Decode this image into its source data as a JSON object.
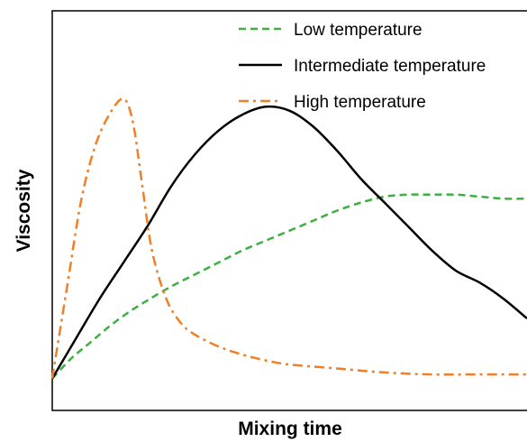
{
  "chart_data": {
    "type": "line",
    "title": "",
    "xlabel": "Mixing time",
    "ylabel": "Viscosity",
    "xlim": [
      0,
      100
    ],
    "ylim": [
      0,
      100
    ],
    "grid": false,
    "legend_position": "top-right",
    "series": [
      {
        "name": "Low temperature",
        "color": "#3cb043",
        "dash": "dashed",
        "x": [
          0,
          4,
          8,
          12,
          16,
          20,
          25,
          30,
          35,
          40,
          45,
          50,
          55,
          60,
          65,
          70,
          75,
          80,
          85,
          90,
          95,
          100
        ],
        "y": [
          8,
          13,
          17,
          21,
          24.5,
          27.5,
          31,
          34,
          37,
          40,
          42.5,
          45,
          47.5,
          50,
          52,
          53.5,
          54,
          54,
          54,
          53.5,
          53,
          53
        ]
      },
      {
        "name": "Intermediate temperature",
        "color": "#000000",
        "dash": "solid",
        "x": [
          0,
          5,
          10,
          15,
          20,
          25,
          30,
          35,
          40,
          45,
          50,
          55,
          60,
          65,
          70,
          75,
          80,
          85,
          90,
          95,
          100
        ],
        "y": [
          8,
          18,
          28,
          37,
          46,
          56,
          64,
          70,
          74,
          76,
          75,
          71,
          65,
          58,
          52,
          46,
          40,
          35,
          32,
          28,
          23
        ]
      },
      {
        "name": "High temperature",
        "color": "#f07f26",
        "dash": "dashdot",
        "x": [
          0,
          3,
          6,
          9,
          12,
          15,
          17,
          19,
          21,
          24,
          27,
          30,
          35,
          40,
          45,
          50,
          60,
          70,
          80,
          90,
          100
        ],
        "y": [
          8,
          30,
          52,
          66,
          74,
          78,
          72,
          56,
          40,
          28,
          22,
          19,
          16,
          14,
          12.5,
          11.5,
          10.5,
          9.5,
          9,
          9,
          9
        ]
      }
    ]
  }
}
